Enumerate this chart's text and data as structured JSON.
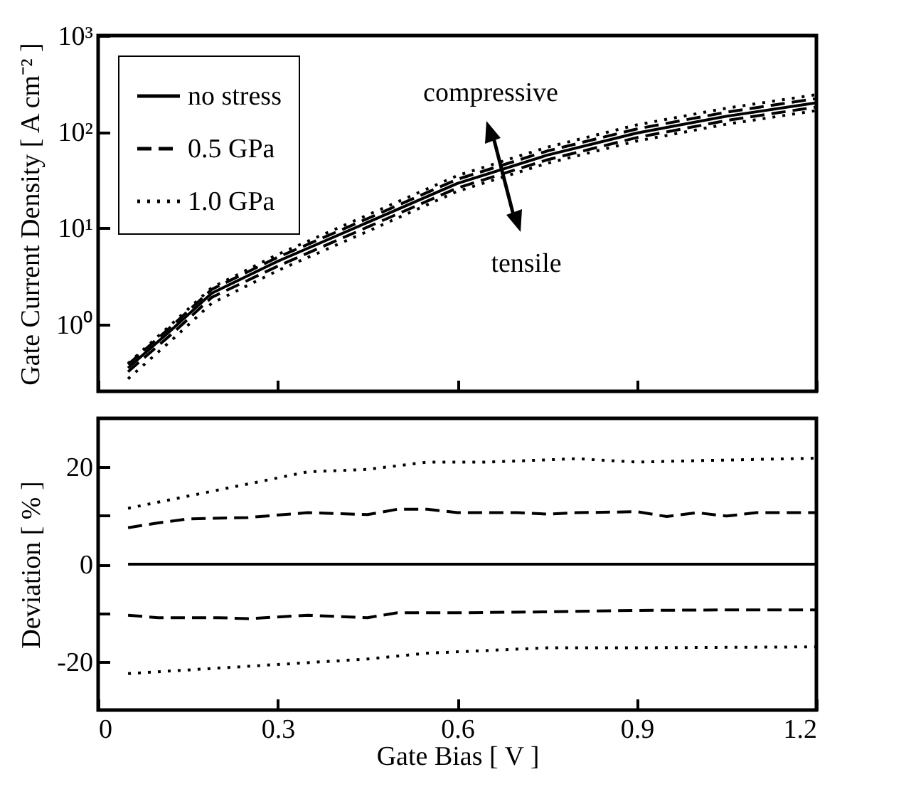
{
  "chart_data": [
    {
      "type": "line",
      "log": "y",
      "ylabel": "Gate Current Density [ A cm⁻² ]",
      "xlim": [
        0,
        1.2
      ],
      "xticks": [
        0,
        0.3,
        0.6,
        0.9,
        1.2
      ],
      "ylim": [
        0.2,
        1000
      ],
      "yticks": [
        {
          "value": 1,
          "label": "10⁰"
        },
        {
          "value": 10,
          "label": "10¹"
        },
        {
          "value": 100,
          "label": "10²"
        },
        {
          "value": 1000,
          "label": "10³"
        }
      ],
      "tick_labels": "y",
      "legend": "top left",
      "annotations": [
        "compressive",
        "tensile"
      ],
      "x": [
        0.05,
        0.125,
        0.19,
        0.3,
        0.45,
        0.6,
        0.75,
        0.9,
        1.05,
        1.2
      ],
      "series": [
        {
          "name": "no stress",
          "color": "#000000",
          "line_style": "solid",
          "values": [
            0.35,
            0.9,
            2.1,
            4.5,
            11.4,
            29,
            57,
            97,
            145,
            200
          ]
        },
        {
          "name": "0.5 GPa",
          "color": "#000000",
          "line_style": "dashed",
          "values": [
            0.38,
            0.98,
            2.3,
            4.95,
            12.5,
            32,
            63,
            107,
            160,
            221
          ]
        },
        {
          "color": "#000000",
          "line_style": "dashed",
          "values": [
            0.32,
            0.81,
            1.9,
            4.0,
            10.2,
            26,
            51,
            87,
            131,
            181
          ]
        },
        {
          "name": "1.0 GPa",
          "color": "#000000",
          "line_style": "dotted",
          "values": [
            0.39,
            1.03,
            2.4,
            5.3,
            13.6,
            35,
            69,
            118,
            176,
            243
          ]
        },
        {
          "color": "#000000",
          "line_style": "dotted",
          "values": [
            0.27,
            0.7,
            1.65,
            3.6,
            9.2,
            24,
            47,
            80,
            120,
            166
          ]
        }
      ]
    },
    {
      "type": "line",
      "xlabel": "Gate Bias [ V ]",
      "ylabel": "Deviation [ % ]",
      "xlim": [
        0,
        1.2
      ],
      "xticks": [
        0,
        0.3,
        0.6,
        0.9,
        1.2
      ],
      "ylim": [
        -30,
        30
      ],
      "yticks": [
        -20,
        {
          "value": -10,
          "label": null
        },
        0,
        {
          "value": 10,
          "label": null
        },
        20
      ],
      "series": [
        {
          "color": "#000000",
          "line_style": "solid",
          "x": [
            0.05,
            1.2
          ],
          "values": [
            0,
            0
          ]
        },
        {
          "color": "#000000",
          "line_style": "dashed",
          "x": [
            0.05,
            0.1,
            0.15,
            0.25,
            0.35,
            0.45,
            0.5,
            0.55,
            0.6,
            0.7,
            0.75,
            0.8,
            0.9,
            0.95,
            1.0,
            1.05,
            1.1,
            1.2
          ],
          "values": [
            7.5,
            8.5,
            9.3,
            9.6,
            10.6,
            10.2,
            11.3,
            11.3,
            10.6,
            10.6,
            10.3,
            10.6,
            10.8,
            9.8,
            10.6,
            9.9,
            10.6,
            10.6
          ]
        },
        {
          "color": "#000000",
          "line_style": "dotted",
          "x": [
            0.05,
            0.15,
            0.25,
            0.35,
            0.45,
            0.55,
            0.65,
            0.8,
            0.9,
            1.0,
            1.2
          ],
          "values": [
            11.5,
            14,
            16.5,
            19,
            19.5,
            21,
            21,
            21.7,
            21,
            21.3,
            21.8
          ]
        },
        {
          "color": "#000000",
          "line_style": "dashed",
          "x": [
            0.05,
            0.1,
            0.2,
            0.25,
            0.35,
            0.45,
            0.5,
            0.6,
            0.75,
            0.9,
            1.05,
            1.2
          ],
          "values": [
            -10.5,
            -11,
            -11,
            -11.2,
            -10.5,
            -11,
            -10,
            -10,
            -9.8,
            -9.5,
            -9.4,
            -9.4
          ]
        },
        {
          "color": "#000000",
          "line_style": "dotted",
          "x": [
            0.05,
            0.25,
            0.45,
            0.55,
            0.75,
            0.9,
            1.2
          ],
          "values": [
            -22.5,
            -21,
            -19.5,
            -18.3,
            -17.2,
            -17.2,
            -17
          ]
        }
      ]
    }
  ]
}
